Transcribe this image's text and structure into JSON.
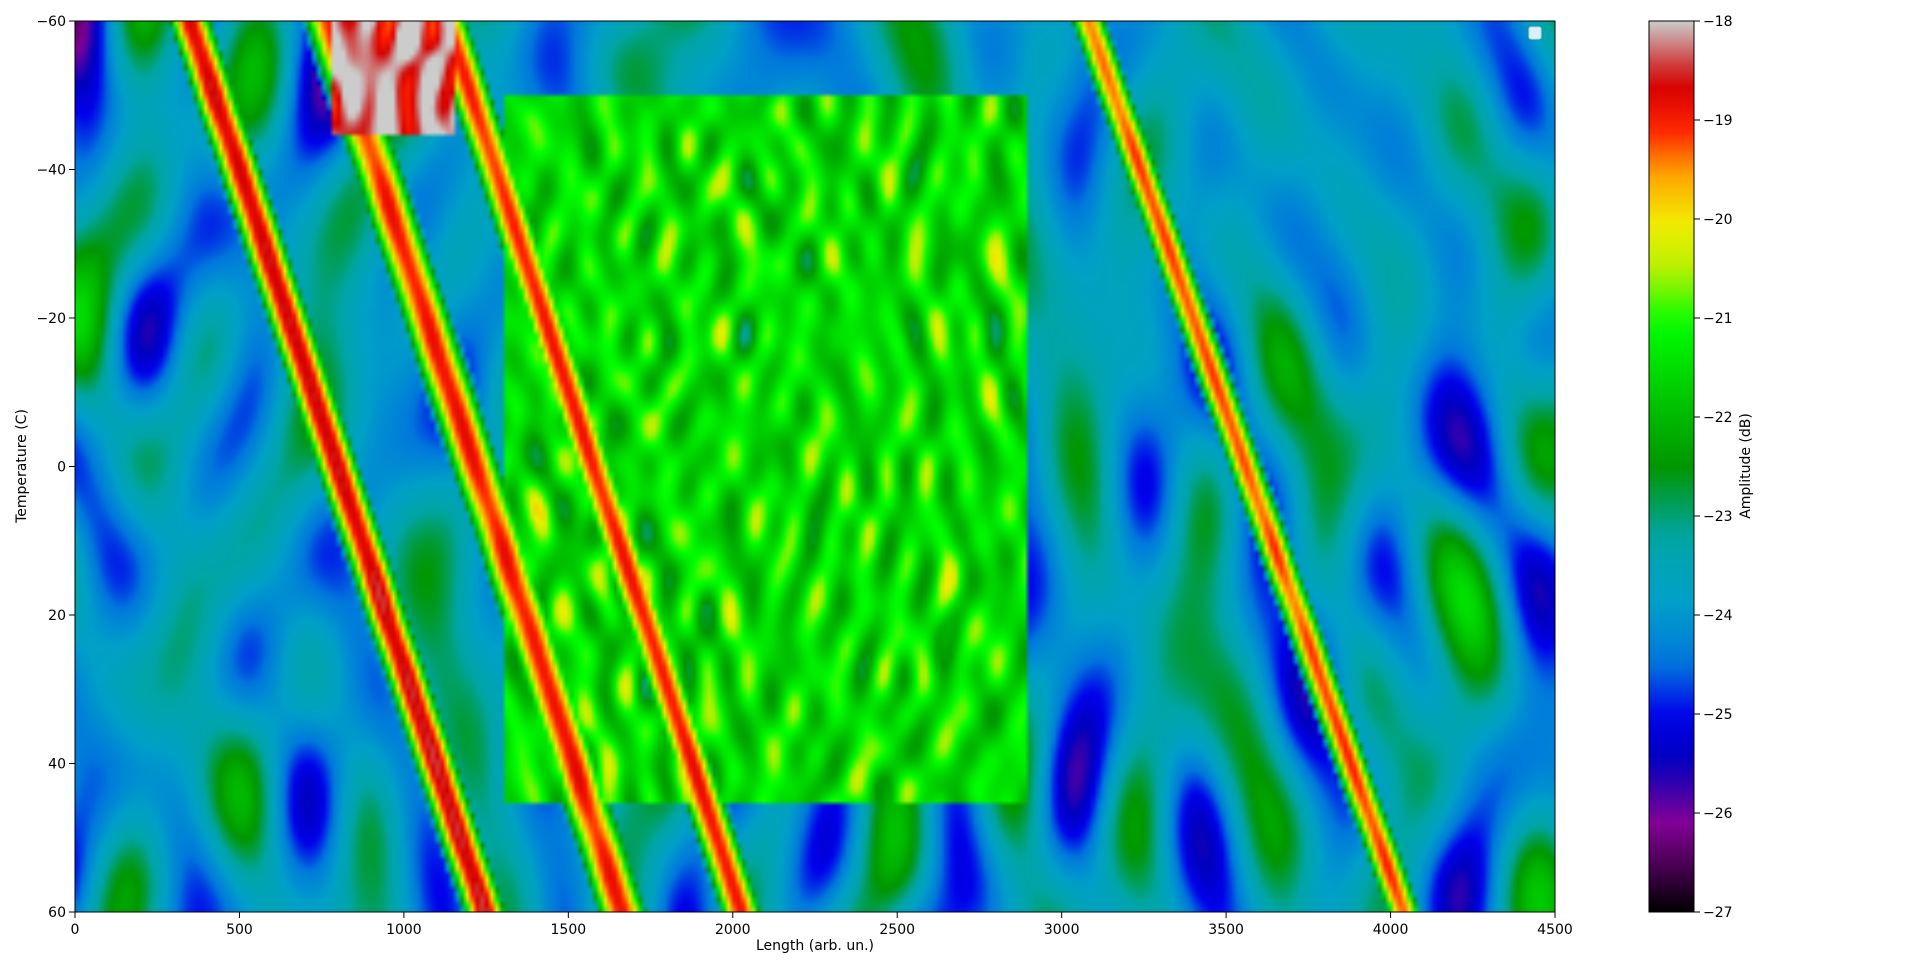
{
  "chart_data": {
    "type": "heatmap",
    "colormap": "nipy_spectral",
    "xlabel": "Length (arb. un.)",
    "ylabel": "Temperature (C)",
    "xlim": [
      0,
      4500
    ],
    "ylim": [
      -60,
      60
    ],
    "y_inverted": true,
    "x_ticks": [
      "0",
      "500",
      "1000",
      "1500",
      "2000",
      "2500",
      "3000",
      "3500",
      "4000",
      "4500"
    ],
    "y_ticks": [
      "−60",
      "−40",
      "−20",
      "0",
      "20",
      "40",
      "60"
    ],
    "colorbar": {
      "label": "Amplitude (dB)",
      "range": [
        -27,
        -18
      ],
      "ticks": [
        "−18",
        "−19",
        "−20",
        "−21",
        "−22",
        "−23",
        "−24",
        "−25",
        "−26",
        "−27"
      ]
    },
    "legend": {
      "placement": "top-right",
      "entries": []
    },
    "background_level": -23.8,
    "features": [
      {
        "kind": "ridge",
        "x_at_ymin": 350,
        "x_at_ymax": 1245,
        "peak": -18.6,
        "width": 38
      },
      {
        "kind": "ridge",
        "x_at_ymin": 770,
        "x_at_ymax": 1665,
        "peak": -19.0,
        "width": 45
      },
      {
        "kind": "ridge",
        "x_at_ymin": 1130,
        "x_at_ymax": 2025,
        "peak": -19.0,
        "width": 38
      },
      {
        "kind": "ridge",
        "x_at_ymin": 3080,
        "x_at_ymax": 4040,
        "peak": -19.2,
        "width": 32
      },
      {
        "kind": "region",
        "x_range": [
          780,
          1150
        ],
        "y_range": [
          -60,
          -45
        ],
        "level": -18.2
      },
      {
        "kind": "region",
        "x_range": [
          1300,
          2900
        ],
        "y_range": [
          -50,
          45
        ],
        "level": -21.5
      }
    ]
  }
}
